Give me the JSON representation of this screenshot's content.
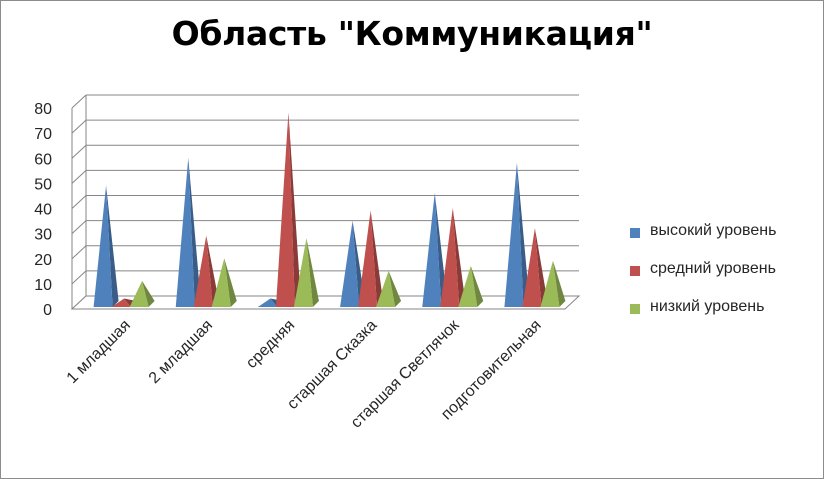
{
  "chart_data": {
    "type": "bar",
    "style": "3d-pyramid",
    "title": "Область \"Коммуникация\"",
    "categories": [
      "1 младшая",
      "2 младшая",
      "средняя",
      "старшая Сказка",
      "старшая Светлячок",
      "подготовительная"
    ],
    "series": [
      {
        "name": "высокий уровень",
        "color": "#4f81bd",
        "values": [
          46,
          57,
          1,
          32,
          43,
          55
        ]
      },
      {
        "name": "средний уровень",
        "color": "#c0504d",
        "values": [
          1,
          26,
          75,
          36,
          37,
          29
        ]
      },
      {
        "name": "низкий уровень",
        "color": "#9bbb59",
        "values": [
          8,
          17,
          25,
          12,
          14,
          16
        ]
      }
    ],
    "yticks": [
      "0",
      "10",
      "20",
      "30",
      "40",
      "50",
      "60",
      "70",
      "80"
    ],
    "ylim": [
      0,
      80
    ],
    "grid": true,
    "legend_position": "right"
  }
}
